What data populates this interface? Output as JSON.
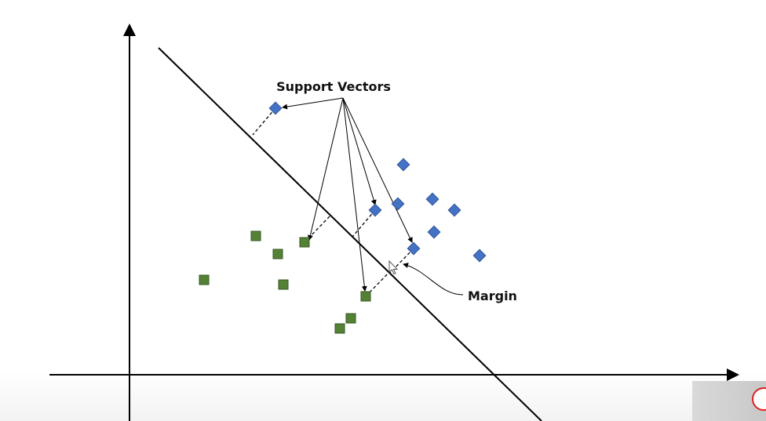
{
  "labels": {
    "support_vectors": "Support Vectors",
    "margin": "Margin"
  },
  "colors": {
    "class_a_fill": "#4472C4",
    "class_b_fill": "#548235",
    "line": "#000000"
  },
  "icons": {
    "cursor": "mouse-pointer-icon",
    "logo": "brand-logo-icon"
  }
}
